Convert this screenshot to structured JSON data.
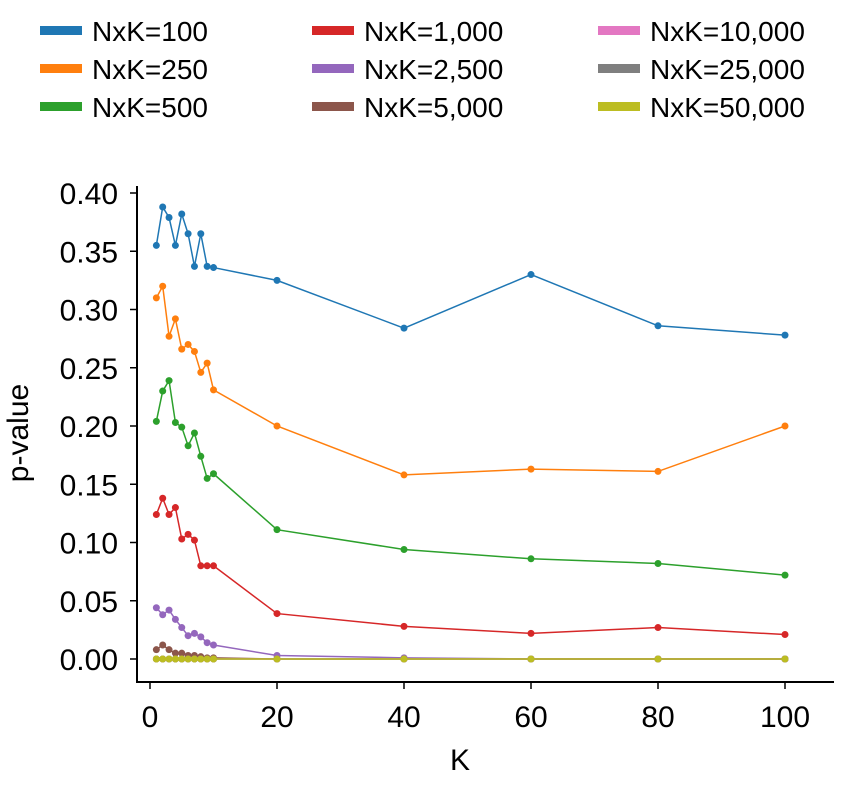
{
  "chart_data": {
    "type": "line",
    "xlabel": "K",
    "ylabel": "p-value",
    "xlim": [
      -2,
      105
    ],
    "ylim": [
      -0.02,
      0.405
    ],
    "xticks": [
      "0",
      "20",
      "40",
      "60",
      "80",
      "100"
    ],
    "yticks": [
      "0.00",
      "0.05",
      "0.10",
      "0.15",
      "0.20",
      "0.25",
      "0.30",
      "0.35",
      "0.40"
    ],
    "grid": false,
    "legend_position": "top",
    "x": [
      1,
      2,
      3,
      4,
      5,
      6,
      7,
      8,
      9,
      10,
      20,
      40,
      60,
      80,
      100
    ],
    "series": [
      {
        "name": "NxK=100",
        "color": "#1f77b4",
        "values": [
          0.355,
          0.388,
          0.379,
          0.355,
          0.382,
          0.365,
          0.337,
          0.365,
          0.337,
          0.336,
          0.325,
          0.284,
          0.33,
          0.286,
          0.278
        ]
      },
      {
        "name": "NxK=250",
        "color": "#ff7f0e",
        "values": [
          0.31,
          0.32,
          0.277,
          0.292,
          0.266,
          0.27,
          0.264,
          0.246,
          0.254,
          0.231,
          0.2,
          0.158,
          0.163,
          0.161,
          0.2
        ]
      },
      {
        "name": "NxK=500",
        "color": "#2ca02c",
        "values": [
          0.204,
          0.23,
          0.239,
          0.203,
          0.199,
          0.183,
          0.194,
          0.174,
          0.155,
          0.159,
          0.111,
          0.094,
          0.086,
          0.082,
          0.072
        ]
      },
      {
        "name": "NxK=1,000",
        "color": "#d62728",
        "values": [
          0.124,
          0.138,
          0.124,
          0.13,
          0.103,
          0.107,
          0.102,
          0.08,
          0.08,
          0.08,
          0.039,
          0.028,
          0.022,
          0.027,
          0.021
        ]
      },
      {
        "name": "NxK=2,500",
        "color": "#9467bd",
        "values": [
          0.044,
          0.038,
          0.042,
          0.034,
          0.027,
          0.02,
          0.022,
          0.019,
          0.014,
          0.012,
          0.003,
          0.001,
          0.0,
          0.0,
          0.0
        ]
      },
      {
        "name": "NxK=5,000",
        "color": "#8c564b",
        "values": [
          0.008,
          0.012,
          0.008,
          0.005,
          0.005,
          0.003,
          0.003,
          0.002,
          0.001,
          0.001,
          0.0,
          0.0,
          0.0,
          0.0,
          0.0
        ]
      },
      {
        "name": "NxK=10,000",
        "color": "#e377c2",
        "values": [
          0,
          0,
          0,
          0,
          0,
          0,
          0,
          0,
          0,
          0,
          0,
          0,
          0,
          0,
          0
        ]
      },
      {
        "name": "NxK=25,000",
        "color": "#7f7f7f",
        "values": [
          0,
          0,
          0,
          0,
          0,
          0,
          0,
          0,
          0,
          0,
          0,
          0,
          0,
          0,
          0
        ]
      },
      {
        "name": "NxK=50,000",
        "color": "#bcbd22",
        "values": [
          0,
          0,
          0,
          0,
          0,
          0,
          0,
          0,
          0,
          0,
          0,
          0,
          0,
          0,
          0
        ]
      }
    ]
  }
}
